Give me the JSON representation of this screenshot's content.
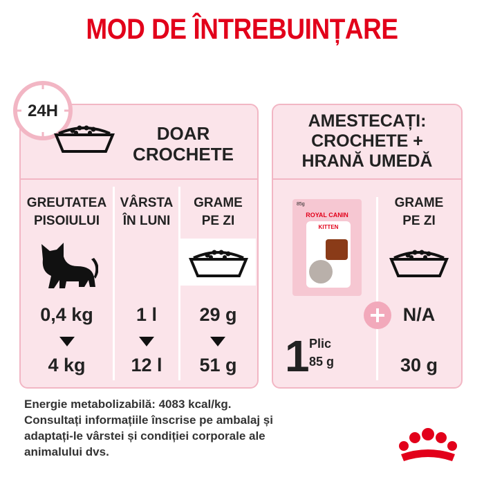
{
  "title": "MOD DE ÎNTREBUINȚARE",
  "left_panel": {
    "badge": "24H",
    "header": [
      "DOAR",
      "CROCHETE"
    ],
    "columns": [
      {
        "header": [
          "GREUTATEA",
          "PISOIULUI"
        ],
        "from": "0,4 kg",
        "to": "4 kg"
      },
      {
        "header": [
          "VÂRSTA",
          "ÎN LUNI"
        ],
        "from": "1 l",
        "to": "12 l"
      },
      {
        "header": [
          "GRAME",
          "PE ZI"
        ],
        "from": "29 g",
        "to": "51 g"
      }
    ]
  },
  "right_panel": {
    "header": [
      "AMESTECAȚI:",
      "CROCHETE +",
      "HRANĂ UMEDĂ"
    ],
    "pouch": {
      "weight_print": "85g",
      "brand": "ROYAL CANIN",
      "product": "KITTEN",
      "count": "1",
      "unit": "Plic",
      "weight": "85 g"
    },
    "column": {
      "header": [
        "GRAME",
        "PE ZI"
      ],
      "from": "N/A",
      "to": "30 g"
    }
  },
  "footer": [
    "Energie metabolizabilă: 4083 kcal/kg.",
    "Consultați informațiile înscrise pe ambalaj și",
    "adaptați-le vârstei și condiției corporale ale",
    "animalului dvs."
  ]
}
